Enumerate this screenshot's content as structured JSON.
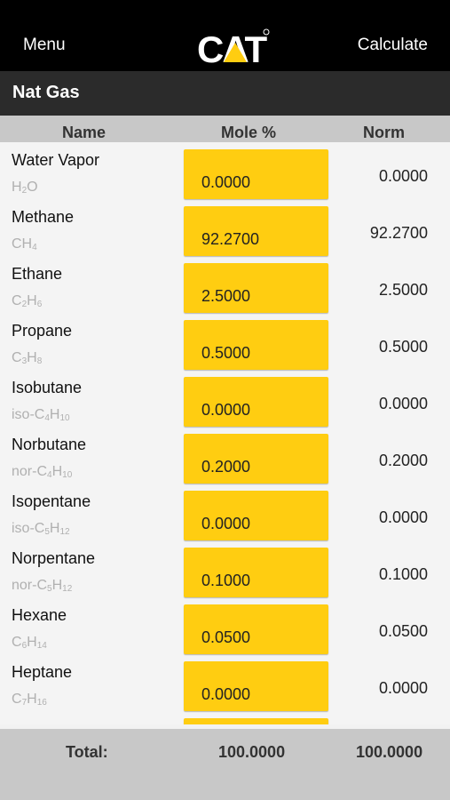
{
  "header": {
    "menu_label": "Menu",
    "logo_text": "CAT",
    "calculate_label": "Calculate"
  },
  "section": {
    "title": "Nat Gas"
  },
  "columns": {
    "name": "Name",
    "mole": "Mole %",
    "norm": "Norm"
  },
  "rows": [
    {
      "name": "Water Vapor",
      "formula_parts": [
        [
          "H",
          "2"
        ],
        [
          "O",
          ""
        ]
      ],
      "mole": "0.0000",
      "norm": "0.0000"
    },
    {
      "name": "Methane",
      "formula_parts": [
        [
          "CH",
          "4"
        ]
      ],
      "mole": "92.2700",
      "norm": "92.2700"
    },
    {
      "name": "Ethane",
      "formula_parts": [
        [
          "C",
          "2"
        ],
        [
          "H",
          "6"
        ]
      ],
      "mole": "2.5000",
      "norm": "2.5000"
    },
    {
      "name": "Propane",
      "formula_parts": [
        [
          "C",
          "3"
        ],
        [
          "H",
          "8"
        ]
      ],
      "mole": "0.5000",
      "norm": "0.5000"
    },
    {
      "name": "Isobutane",
      "formula_parts": [
        [
          "iso-C",
          "4"
        ],
        [
          "H",
          "10"
        ]
      ],
      "mole": "0.0000",
      "norm": "0.0000"
    },
    {
      "name": "Norbutane",
      "formula_parts": [
        [
          "nor-C",
          "4"
        ],
        [
          "H",
          "10"
        ]
      ],
      "mole": "0.2000",
      "norm": "0.2000"
    },
    {
      "name": "Isopentane",
      "formula_parts": [
        [
          "iso-C",
          "5"
        ],
        [
          "H",
          "12"
        ]
      ],
      "mole": "0.0000",
      "norm": "0.0000"
    },
    {
      "name": "Norpentane",
      "formula_parts": [
        [
          "nor-C",
          "5"
        ],
        [
          "H",
          "12"
        ]
      ],
      "mole": "0.1000",
      "norm": "0.1000"
    },
    {
      "name": "Hexane",
      "formula_parts": [
        [
          "C",
          "6"
        ],
        [
          "H",
          "14"
        ]
      ],
      "mole": "0.0500",
      "norm": "0.0500"
    },
    {
      "name": "Heptane",
      "formula_parts": [
        [
          "C",
          "7"
        ],
        [
          "H",
          "16"
        ]
      ],
      "mole": "0.0000",
      "norm": "0.0000"
    },
    {
      "name": "",
      "formula_parts": [],
      "mole": "",
      "norm": ""
    }
  ],
  "footer": {
    "label": "Total:",
    "mole_total": "100.0000",
    "norm_total": "100.0000"
  },
  "colors": {
    "accent": "#ffcd11",
    "topbar": "#000000",
    "section": "#2b2b2b",
    "header": "#c8c8c8"
  }
}
